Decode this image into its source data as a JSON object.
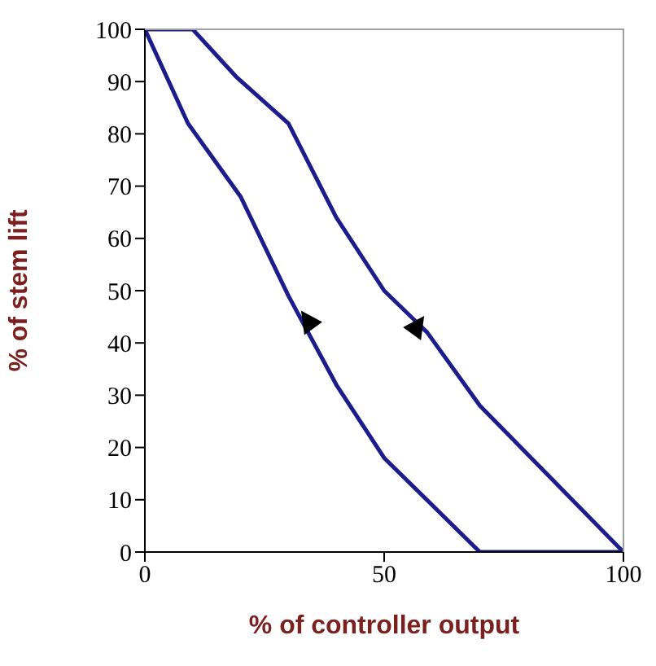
{
  "chart_data": {
    "type": "line",
    "xlabel": "% of controller output",
    "ylabel": "% of stem lift",
    "series": [
      {
        "color": "#1c1c8c",
        "x": [
          0,
          9,
          20,
          30,
          40,
          50,
          70,
          100
        ],
        "values": [
          100,
          82,
          68,
          49,
          32,
          18,
          0,
          0
        ]
      },
      {
        "color": "#1c1c8c",
        "x": [
          0,
          10,
          19,
          30,
          40,
          50,
          59,
          70,
          100
        ],
        "values": [
          100,
          100,
          91,
          82,
          64,
          50,
          42,
          28,
          0
        ]
      }
    ],
    "xlim": [
      0,
      100
    ],
    "xticks": [
      0,
      50,
      100
    ],
    "ylim": [
      0,
      100
    ],
    "yticks": [
      0,
      10,
      20,
      30,
      40,
      50,
      60,
      70,
      80,
      90,
      100
    ],
    "grid": false,
    "legend": false,
    "marker": "none",
    "line_style": "solid"
  }
}
